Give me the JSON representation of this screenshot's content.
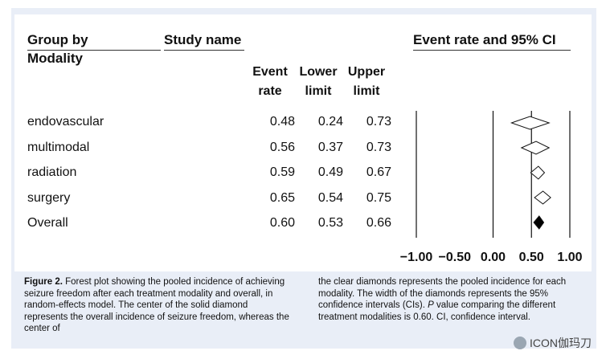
{
  "chart_data": {
    "type": "forest",
    "headers": {
      "group_col": [
        "Group by",
        "Modality"
      ],
      "study_col": "Study name",
      "plot_col": "Event rate and 95% CI",
      "rate_col": [
        "Event",
        "rate"
      ],
      "lower_col": [
        "Lower",
        "limit"
      ],
      "upper_col": [
        "Upper",
        "limit"
      ]
    },
    "rows": [
      {
        "label": "endovascular",
        "rate": "0.48",
        "lower": "0.24",
        "upper": "0.73",
        "filled": false
      },
      {
        "label": "multimodal",
        "rate": "0.56",
        "lower": "0.37",
        "upper": "0.73",
        "filled": false
      },
      {
        "label": "radiation",
        "rate": "0.59",
        "lower": "0.49",
        "upper": "0.67",
        "filled": false
      },
      {
        "label": "surgery",
        "rate": "0.65",
        "lower": "0.54",
        "upper": "0.75",
        "filled": false
      },
      {
        "label": "Overall",
        "rate": "0.60",
        "lower": "0.53",
        "upper": "0.66",
        "filled": true
      }
    ],
    "xlim": [
      -1.0,
      1.0
    ],
    "ticks": [
      {
        "value": -1.0,
        "label": "−1.00"
      },
      {
        "value": -0.5,
        "label": "−0.50"
      },
      {
        "value": 0.0,
        "label": "0.00"
      },
      {
        "value": 0.5,
        "label": "0.50"
      },
      {
        "value": 1.0,
        "label": "1.00"
      }
    ],
    "reference_lines": [
      -1.0,
      0.0,
      0.5,
      1.0
    ]
  },
  "caption": {
    "label": "Figure 2.",
    "left_text": "Forest plot showing the pooled incidence of achieving seizure freedom after each treatment modality and overall, in random-effects model. The center of the solid diamond represents the overall incidence of seizure freedom, whereas the center of",
    "right_text_1": "the clear diamonds represents the pooled incidence for each modality. The width of the diamonds represents the 95% confidence intervals (CIs).",
    "p_italic": "P",
    "right_text_2": "value comparing the different treatment modalities is 0.60. CI, confidence interval."
  },
  "watermark": {
    "text": "ICON伽玛刀",
    "icon": "wechat-icon"
  }
}
